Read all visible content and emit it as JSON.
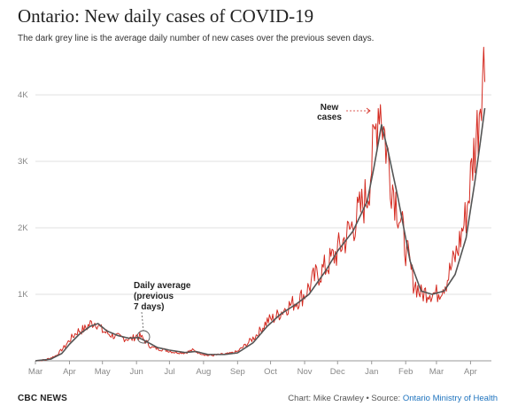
{
  "chart_data": {
    "type": "line",
    "title": "Ontario: New daily cases of COVID-19",
    "subtitle": "The dark grey line is the average daily number of new cases over the previous seven days.",
    "x_labels": [
      "Mar",
      "Apr",
      "May",
      "Jun",
      "Jul",
      "Aug",
      "Sep",
      "Oct",
      "Nov",
      "Dec",
      "Jan",
      "Feb",
      "Mar",
      "Apr"
    ],
    "y_ticks": [
      {
        "value": 1000,
        "label": "1K"
      },
      {
        "value": 2000,
        "label": "2K"
      },
      {
        "value": 3000,
        "label": "3K"
      },
      {
        "value": 4000,
        "label": "4K"
      }
    ],
    "ylim": [
      0,
      4600
    ],
    "grid": "horizontal",
    "annotations": [
      {
        "text_lines": [
          "New",
          "cases"
        ],
        "target": "daily series near mid-January 2021"
      },
      {
        "text_lines": [
          "Daily average",
          "(previous",
          "7 days)"
        ],
        "target": "7-day average near early June 2020"
      }
    ],
    "series": [
      {
        "key": "new_cases",
        "color": "#d42a20",
        "anchors": [
          [
            "2020-03-01",
            0
          ],
          [
            "2020-03-10",
            10
          ],
          [
            "2020-03-20",
            80
          ],
          [
            "2020-03-28",
            220
          ],
          [
            "2020-04-01",
            310
          ],
          [
            "2020-04-08",
            440
          ],
          [
            "2020-04-15",
            480
          ],
          [
            "2020-04-20",
            560
          ],
          [
            "2020-04-25",
            580
          ],
          [
            "2020-05-01",
            450
          ],
          [
            "2020-05-10",
            380
          ],
          [
            "2020-05-20",
            340
          ],
          [
            "2020-05-28",
            330
          ],
          [
            "2020-06-01",
            380
          ],
          [
            "2020-06-05",
            360
          ],
          [
            "2020-06-15",
            200
          ],
          [
            "2020-06-25",
            170
          ],
          [
            "2020-07-05",
            130
          ],
          [
            "2020-07-15",
            120
          ],
          [
            "2020-07-22",
            160
          ],
          [
            "2020-07-28",
            120
          ],
          [
            "2020-08-05",
            80
          ],
          [
            "2020-08-15",
            90
          ],
          [
            "2020-08-25",
            110
          ],
          [
            "2020-09-01",
            140
          ],
          [
            "2020-09-10",
            260
          ],
          [
            "2020-09-20",
            420
          ],
          [
            "2020-09-28",
            600
          ],
          [
            "2020-10-05",
            650
          ],
          [
            "2020-10-15",
            800
          ],
          [
            "2020-10-25",
            900
          ],
          [
            "2020-11-01",
            1000
          ],
          [
            "2020-11-10",
            1250
          ],
          [
            "2020-11-20",
            1400
          ],
          [
            "2020-12-01",
            1650
          ],
          [
            "2020-12-10",
            1900
          ],
          [
            "2020-12-20",
            2200
          ],
          [
            "2020-12-28",
            2500
          ],
          [
            "2021-01-03",
            3200
          ],
          [
            "2021-01-08",
            4000
          ],
          [
            "2021-01-12",
            3500
          ],
          [
            "2021-01-18",
            2800
          ],
          [
            "2021-01-25",
            2300
          ],
          [
            "2021-02-01",
            1700
          ],
          [
            "2021-02-08",
            1200
          ],
          [
            "2021-02-15",
            1000
          ],
          [
            "2021-02-22",
            1050
          ],
          [
            "2021-03-01",
            1000
          ],
          [
            "2021-03-10",
            1200
          ],
          [
            "2021-03-20",
            1650
          ],
          [
            "2021-03-28",
            2200
          ],
          [
            "2021-04-03",
            3000
          ],
          [
            "2021-04-08",
            3600
          ],
          [
            "2021-04-11",
            4300
          ],
          [
            "2021-04-14",
            4450
          ]
        ]
      },
      {
        "key": "seven_day_average",
        "color": "#555555",
        "anchors": [
          [
            "2020-03-01",
            0
          ],
          [
            "2020-03-15",
            25
          ],
          [
            "2020-03-25",
            110
          ],
          [
            "2020-04-01",
            250
          ],
          [
            "2020-04-10",
            400
          ],
          [
            "2020-04-20",
            520
          ],
          [
            "2020-04-27",
            560
          ],
          [
            "2020-05-05",
            450
          ],
          [
            "2020-05-15",
            380
          ],
          [
            "2020-05-25",
            340
          ],
          [
            "2020-06-03",
            350
          ],
          [
            "2020-06-10",
            290
          ],
          [
            "2020-06-20",
            200
          ],
          [
            "2020-07-01",
            160
          ],
          [
            "2020-07-15",
            125
          ],
          [
            "2020-07-25",
            140
          ],
          [
            "2020-08-05",
            95
          ],
          [
            "2020-08-20",
            95
          ],
          [
            "2020-09-01",
            120
          ],
          [
            "2020-09-15",
            270
          ],
          [
            "2020-09-28",
            520
          ],
          [
            "2020-10-10",
            700
          ],
          [
            "2020-10-25",
            860
          ],
          [
            "2020-11-05",
            1000
          ],
          [
            "2020-11-20",
            1350
          ],
          [
            "2020-12-01",
            1650
          ],
          [
            "2020-12-15",
            1950
          ],
          [
            "2020-12-28",
            2400
          ],
          [
            "2021-01-03",
            2900
          ],
          [
            "2021-01-10",
            3550
          ],
          [
            "2021-01-16",
            3150
          ],
          [
            "2021-01-25",
            2450
          ],
          [
            "2021-02-05",
            1500
          ],
          [
            "2021-02-15",
            1050
          ],
          [
            "2021-02-25",
            1000
          ],
          [
            "2021-03-08",
            1050
          ],
          [
            "2021-03-18",
            1300
          ],
          [
            "2021-03-28",
            1850
          ],
          [
            "2021-04-05",
            2700
          ],
          [
            "2021-04-10",
            3300
          ],
          [
            "2021-04-14",
            3800
          ]
        ]
      }
    ]
  },
  "footer": {
    "left": "CBC NEWS",
    "credit": "Chart: Mike Crawley",
    "separator": " • Source: ",
    "source": "Ontario Ministry of Health"
  }
}
